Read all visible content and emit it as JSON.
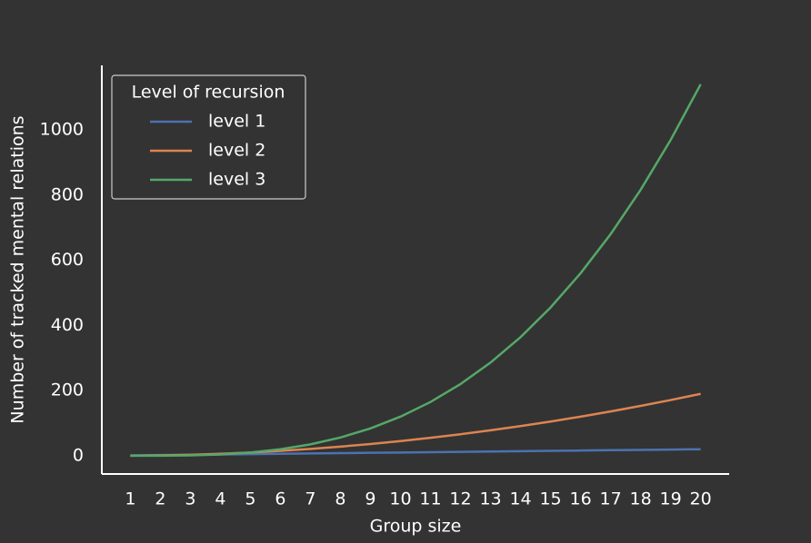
{
  "chart_data": {
    "type": "line",
    "x_label": "Group size",
    "y_label": "Number of tracked mental relations",
    "legend_title": "Level of recursion",
    "legend": "upper left",
    "x": [
      1,
      2,
      3,
      4,
      5,
      6,
      7,
      8,
      9,
      10,
      11,
      12,
      13,
      14,
      15,
      16,
      17,
      18,
      19,
      20
    ],
    "series": [
      {
        "name": "level 1",
        "color": "#4c72b0",
        "values": [
          1,
          2,
          3,
          4,
          5,
          6,
          7,
          8,
          9,
          10,
          11,
          12,
          13,
          14,
          15,
          16,
          17,
          18,
          19,
          20
        ]
      },
      {
        "name": "level 2",
        "color": "#dd8452",
        "values": [
          0,
          1,
          3,
          6,
          10,
          15,
          21,
          28,
          36,
          45,
          55,
          66,
          78,
          91,
          105,
          120,
          136,
          153,
          171,
          190
        ]
      },
      {
        "name": "level 3",
        "color": "#55a868",
        "values": [
          0,
          0,
          1,
          4,
          10,
          20,
          35,
          56,
          84,
          120,
          165,
          220,
          286,
          364,
          455,
          560,
          680,
          816,
          969,
          1140
        ]
      }
    ],
    "xlim": [
      0.05,
      20.95
    ],
    "xticks": [
      1,
      2,
      3,
      4,
      5,
      6,
      7,
      8,
      9,
      10,
      11,
      12,
      13,
      14,
      15,
      16,
      17,
      18,
      19,
      20
    ],
    "ylim": [
      -56,
      1198
    ],
    "yticks": [
      0,
      200,
      400,
      600,
      800,
      1000
    ],
    "grid": false
  }
}
